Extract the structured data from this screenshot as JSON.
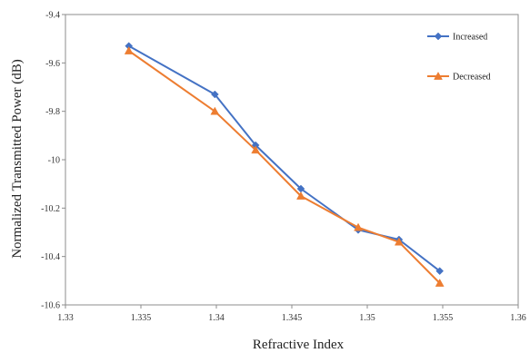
{
  "chart_data": {
    "type": "line",
    "title": "",
    "xlabel": "Refractive  Index",
    "ylabel": "Normalized Transmitted Power (dB)",
    "xlim": [
      1.33,
      1.36
    ],
    "ylim": [
      -10.6,
      -9.4
    ],
    "xticks": [
      1.33,
      1.335,
      1.34,
      1.345,
      1.35,
      1.355,
      1.36
    ],
    "xtick_labels": [
      "1.33",
      "1.335",
      "1.34",
      "1.345",
      "1.35",
      "1.355",
      "1.36"
    ],
    "yticks": [
      -9.4,
      -9.6,
      -9.8,
      -10,
      -10.2,
      -10.4,
      -10.6
    ],
    "ytick_labels": [
      "-9.4",
      "-9.6",
      "-9.8",
      "-10",
      "-10.2",
      "-10.4",
      "-10.6"
    ],
    "grid": false,
    "legend_position": "top-right",
    "series": [
      {
        "name": "Increased",
        "color": "#4472c4",
        "marker": "diamond",
        "x": [
          1.3342,
          1.3399,
          1.3426,
          1.3456,
          1.3494,
          1.3521,
          1.3548
        ],
        "y": [
          -9.53,
          -9.73,
          -9.94,
          -10.12,
          -10.29,
          -10.33,
          -10.46
        ]
      },
      {
        "name": "Decreased",
        "color": "#ed7d31",
        "marker": "triangle",
        "x": [
          1.3342,
          1.3399,
          1.3426,
          1.3456,
          1.3494,
          1.3521,
          1.3548
        ],
        "y": [
          -9.55,
          -9.8,
          -9.96,
          -10.15,
          -10.28,
          -10.34,
          -10.51
        ]
      }
    ]
  }
}
